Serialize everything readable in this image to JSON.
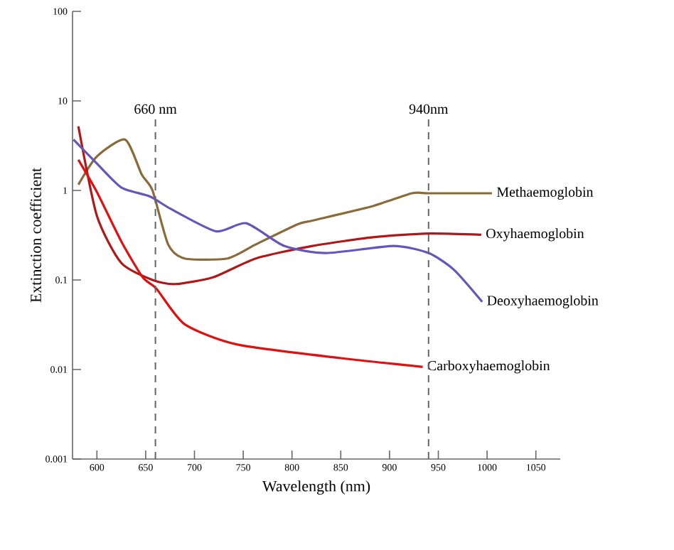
{
  "chart_data": {
    "type": "line",
    "xlabel": "Wavelength (nm)",
    "ylabel": "Extinction coefficient",
    "log": "y",
    "marker": "none",
    "xlim": [
      575,
      1075
    ],
    "ylim": [
      0.001,
      100
    ],
    "xticks": [
      600,
      650,
      700,
      750,
      800,
      850,
      900,
      950,
      1000,
      1050
    ],
    "yticks": [
      0.001,
      0.01,
      0.1,
      1,
      10,
      100
    ],
    "ref_lines": [
      {
        "axis": "x",
        "value": 660,
        "label": "660 nm",
        "color": "#666666",
        "line_style": "dashed"
      },
      {
        "axis": "x",
        "value": 940,
        "label": "940nm",
        "color": "#666666",
        "line_style": "dashed"
      }
    ],
    "series": [
      {
        "name": "Methaemoglobin",
        "color": "#8b6a3a",
        "x": [
          581,
          600,
          629,
          646,
          657,
          673,
          690,
          734,
          763,
          806,
          821,
          883,
          923,
          940,
          1005
        ],
        "values": [
          1.16,
          2.4,
          3.7,
          1.5,
          1.0,
          0.25,
          0.174,
          0.174,
          0.25,
          0.42,
          0.46,
          0.67,
          0.93,
          0.93,
          0.93
        ]
      },
      {
        "name": "Oxyhaemoglobin",
        "color": "#b01818",
        "x": [
          581,
          600,
          625,
          657,
          680,
          719,
          763,
          821,
          883,
          940,
          994
        ],
        "values": [
          5.2,
          0.52,
          0.155,
          0.1,
          0.09,
          0.107,
          0.174,
          0.24,
          0.3,
          0.33,
          0.32
        ]
      },
      {
        "name": "Deoxyhaemoglobin",
        "color": "#6655bb",
        "x": [
          576,
          600,
          625,
          654,
          676,
          722,
          753,
          792,
          835,
          904,
          940,
          966,
          995
        ],
        "values": [
          3.7,
          2.0,
          1.08,
          0.86,
          0.62,
          0.35,
          0.43,
          0.24,
          0.2,
          0.24,
          0.2,
          0.13,
          0.057
        ]
      },
      {
        "name": "Carboxyhaemoglobin",
        "color": "#e01010",
        "x": [
          581,
          600,
          625,
          647,
          661,
          690,
          744,
          850,
          934
        ],
        "values": [
          2.2,
          0.96,
          0.27,
          0.107,
          0.08,
          0.032,
          0.019,
          0.0134,
          0.0107
        ]
      }
    ]
  }
}
